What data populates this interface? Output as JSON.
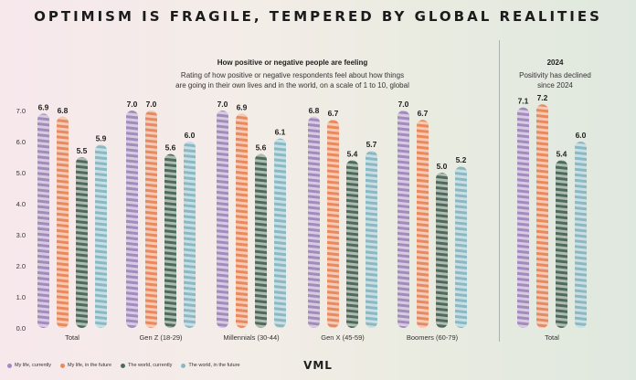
{
  "title": "OPTIMISM IS FRAGILE, TEMPERED BY GLOBAL REALITIES",
  "main_heading": "How positive or negative people are feeling",
  "main_desc_1": "Rating of how positive or negative respondents feel about how things",
  "main_desc_2": "are going in their own lives and in the world, on a scale of 1 to 10, global",
  "side_heading": "2024",
  "side_desc_1": "Positivity has declined",
  "side_desc_2": "since 2024",
  "brand": "VML",
  "colors": {
    "my_life_currently": "#a38bbd",
    "my_life_future": "#e98a5e",
    "world_currently": "#4e6b5a",
    "world_future": "#8ab9c4"
  },
  "legend": [
    {
      "label": "My life, currently",
      "color": "#a38bbd"
    },
    {
      "label": "My life, in the future",
      "color": "#e98a5e"
    },
    {
      "label": "The world, currently",
      "color": "#4e6b5a"
    },
    {
      "label": "The world, in the future",
      "color": "#8ab9c4"
    }
  ],
  "chart_data": [
    {
      "type": "bar",
      "title": "How positive or negative people are feeling",
      "categories": [
        "Total",
        "Gen Z (18-29)",
        "Millennials (30-44)",
        "Gen X (45-59)",
        "Boomers (60-79)"
      ],
      "series": [
        {
          "name": "My life, currently",
          "values": [
            6.9,
            7.0,
            7.0,
            6.8,
            7.0
          ]
        },
        {
          "name": "My life, in the future",
          "values": [
            6.8,
            7.0,
            6.9,
            6.7,
            6.7
          ]
        },
        {
          "name": "The world, currently",
          "values": [
            5.5,
            5.6,
            5.6,
            5.4,
            5.0
          ]
        },
        {
          "name": "The world, in the future",
          "values": [
            5.9,
            6.0,
            6.1,
            5.7,
            5.2
          ]
        }
      ],
      "yticks": [
        "0.0",
        "1.0",
        "2.0",
        "3.0",
        "4.0",
        "5.0",
        "6.0",
        "7.0"
      ],
      "ylim": [
        0,
        7
      ],
      "legend_position": "bottom-left"
    },
    {
      "type": "bar",
      "title": "2024",
      "categories": [
        "Total"
      ],
      "series": [
        {
          "name": "My life, currently",
          "values": [
            7.1
          ]
        },
        {
          "name": "My life, in the future",
          "values": [
            7.2
          ]
        },
        {
          "name": "The world, currently",
          "values": [
            5.4
          ]
        },
        {
          "name": "The world, in the future",
          "values": [
            6.0
          ]
        }
      ],
      "ylim": [
        0,
        7
      ]
    }
  ]
}
